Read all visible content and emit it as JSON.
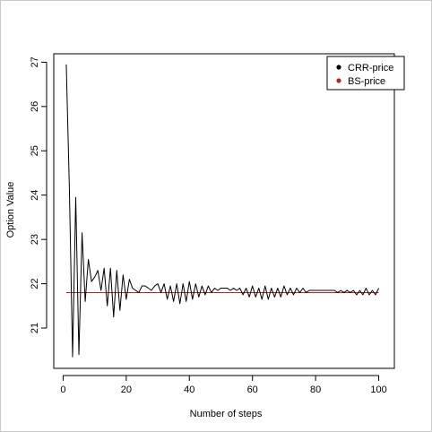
{
  "chart_data": {
    "type": "line",
    "title": "",
    "xlabel": "Number of steps",
    "ylabel": "Option Value",
    "xlim": [
      -2.96,
      104.96
    ],
    "ylim": [
      20.09,
      27.19
    ],
    "xticks": [
      0,
      20,
      40,
      60,
      80,
      100
    ],
    "yticks": [
      21,
      22,
      23,
      24,
      25,
      26,
      27
    ],
    "grid": false,
    "legend": {
      "position": "top-right",
      "entries": [
        "CRR-price",
        "BS-price"
      ]
    },
    "series": [
      {
        "name": "CRR-price",
        "color": "#000000",
        "x": [
          1,
          2,
          3,
          4,
          5,
          6,
          7,
          8,
          9,
          10,
          11,
          12,
          13,
          14,
          15,
          16,
          17,
          18,
          19,
          20,
          21,
          22,
          23,
          24,
          25,
          26,
          27,
          28,
          29,
          30,
          31,
          32,
          33,
          34,
          35,
          36,
          37,
          38,
          39,
          40,
          41,
          42,
          43,
          44,
          45,
          46,
          47,
          48,
          49,
          50,
          51,
          52,
          53,
          54,
          55,
          56,
          57,
          58,
          59,
          60,
          61,
          62,
          63,
          64,
          65,
          66,
          67,
          68,
          69,
          70,
          71,
          72,
          73,
          74,
          75,
          76,
          77,
          78,
          79,
          80,
          81,
          82,
          83,
          84,
          85,
          86,
          87,
          88,
          89,
          90,
          91,
          92,
          93,
          94,
          95,
          96,
          97,
          98,
          99,
          100
        ],
        "values": [
          26.95,
          24.1,
          20.35,
          23.95,
          20.4,
          23.15,
          21.6,
          22.55,
          22.05,
          22.15,
          22.3,
          21.85,
          22.35,
          21.5,
          22.35,
          21.25,
          22.3,
          21.4,
          22.2,
          21.65,
          22.1,
          21.9,
          21.85,
          21.8,
          21.95,
          21.95,
          21.9,
          21.85,
          21.95,
          22.0,
          21.8,
          22.0,
          21.65,
          21.95,
          21.6,
          22.0,
          21.55,
          22.0,
          21.6,
          22.05,
          21.65,
          22.0,
          21.7,
          21.95,
          21.75,
          21.95,
          21.8,
          21.9,
          21.85,
          21.9,
          21.9,
          21.9,
          21.85,
          21.9,
          21.85,
          21.9,
          21.75,
          21.9,
          21.7,
          21.95,
          21.7,
          21.9,
          21.65,
          21.95,
          21.65,
          21.9,
          21.7,
          21.9,
          21.7,
          21.95,
          21.75,
          21.9,
          21.75,
          21.9,
          21.8,
          21.9,
          21.8,
          21.85,
          21.85,
          21.85,
          21.85,
          21.85,
          21.85,
          21.85,
          21.85,
          21.85,
          21.8,
          21.85,
          21.8,
          21.85,
          21.8,
          21.85,
          21.75,
          21.85,
          21.75,
          21.9,
          21.75,
          21.85,
          21.75,
          21.9
        ]
      },
      {
        "name": "BS-price",
        "color": "#a52a2a",
        "x": [
          1,
          100
        ],
        "values": [
          21.8,
          21.8
        ]
      }
    ]
  }
}
